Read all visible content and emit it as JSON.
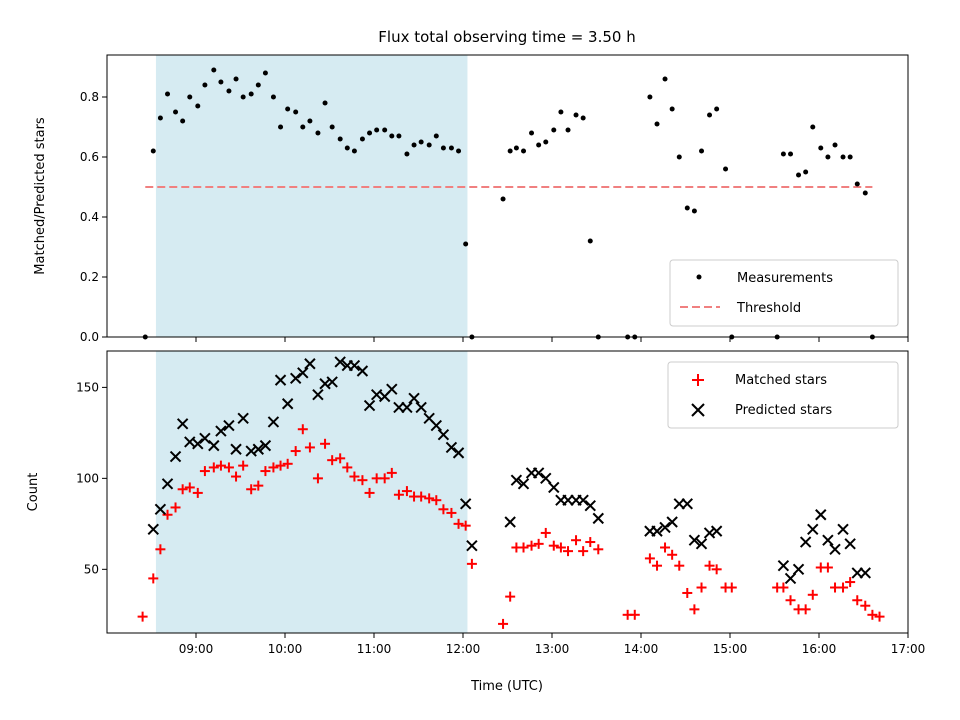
{
  "chart_data": [
    {
      "type": "scatter",
      "title": "Flux total observing time = 3.50 h",
      "ylabel": "Matched/Predicted stars",
      "xlabel": "",
      "x_unit": "hours UTC",
      "xlim": [
        8.0,
        17.0
      ],
      "ylim": [
        0.0,
        0.94
      ],
      "yticks": [
        "0.0",
        "0.2",
        "0.4",
        "0.6",
        "0.8"
      ],
      "ytick_values": [
        0.0,
        0.2,
        0.4,
        0.6,
        0.8
      ],
      "shaded_region": {
        "x0": 8.55,
        "x1": 12.05,
        "color": "#add8e6"
      },
      "legend_position": "lower-right",
      "series": [
        {
          "name": "Measurements",
          "marker": "dot",
          "color": "#000000",
          "x": [
            8.43,
            8.52,
            8.6,
            8.68,
            8.77,
            8.85,
            8.93,
            9.02,
            9.1,
            9.2,
            9.28,
            9.37,
            9.45,
            9.53,
            9.62,
            9.7,
            9.78,
            9.87,
            9.95,
            10.03,
            10.12,
            10.2,
            10.28,
            10.37,
            10.45,
            10.53,
            10.62,
            10.7,
            10.78,
            10.87,
            10.95,
            11.03,
            11.12,
            11.2,
            11.28,
            11.37,
            11.45,
            11.53,
            11.62,
            11.7,
            11.78,
            11.87,
            11.95,
            12.03,
            12.1,
            12.45,
            12.53,
            12.6,
            12.68,
            12.77,
            12.85,
            12.93,
            13.02,
            13.1,
            13.18,
            13.27,
            13.35,
            13.43,
            13.52,
            13.85,
            13.93,
            14.1,
            14.18,
            14.27,
            14.35,
            14.43,
            14.52,
            14.6,
            14.68,
            14.77,
            14.85,
            14.95,
            15.02,
            15.53,
            15.6,
            15.68,
            15.77,
            15.85,
            15.93,
            16.02,
            16.1,
            16.18,
            16.27,
            16.35,
            16.43,
            16.52,
            16.6
          ],
          "y": [
            0.0,
            0.62,
            0.73,
            0.81,
            0.75,
            0.72,
            0.8,
            0.77,
            0.84,
            0.89,
            0.85,
            0.82,
            0.86,
            0.8,
            0.81,
            0.84,
            0.88,
            0.8,
            0.7,
            0.76,
            0.75,
            0.7,
            0.72,
            0.68,
            0.78,
            0.7,
            0.66,
            0.63,
            0.62,
            0.66,
            0.68,
            0.69,
            0.69,
            0.67,
            0.67,
            0.61,
            0.64,
            0.65,
            0.64,
            0.67,
            0.63,
            0.63,
            0.62,
            0.31,
            0.0,
            0.46,
            0.62,
            0.63,
            0.62,
            0.68,
            0.64,
            0.65,
            0.69,
            0.75,
            0.69,
            0.74,
            0.73,
            0.32,
            0.0,
            0.0,
            0.0,
            0.8,
            0.71,
            0.86,
            0.76,
            0.6,
            0.43,
            0.42,
            0.62,
            0.74,
            0.76,
            0.56,
            0.0,
            0.0,
            0.61,
            0.61,
            0.54,
            0.55,
            0.7,
            0.63,
            0.6,
            0.64,
            0.6,
            0.6,
            0.51,
            0.48,
            0.0
          ]
        },
        {
          "name": "Threshold",
          "marker": "dashed-line",
          "color": "#f08080",
          "x": [
            8.43,
            16.6
          ],
          "y": [
            0.5,
            0.5
          ]
        }
      ]
    },
    {
      "type": "scatter",
      "title": "",
      "ylabel": "Count",
      "xlabel": "Time (UTC)",
      "x_unit": "hours UTC",
      "xlim": [
        8.0,
        17.0
      ],
      "ylim": [
        15,
        170
      ],
      "yticks": [
        "50",
        "100",
        "150"
      ],
      "ytick_values": [
        50,
        100,
        150
      ],
      "xticks": [
        "09:00",
        "10:00",
        "11:00",
        "12:00",
        "13:00",
        "14:00",
        "15:00",
        "16:00",
        "17:00"
      ],
      "xtick_values": [
        9,
        10,
        11,
        12,
        13,
        14,
        15,
        16,
        17
      ],
      "shaded_region": {
        "x0": 8.55,
        "x1": 12.05,
        "color": "#add8e6"
      },
      "legend_position": "top-right",
      "series": [
        {
          "name": "Matched stars",
          "marker": "plus",
          "color": "#ff0000",
          "x": [
            8.4,
            8.52,
            8.6,
            8.68,
            8.77,
            8.85,
            8.93,
            9.02,
            9.1,
            9.2,
            9.28,
            9.37,
            9.45,
            9.53,
            9.62,
            9.7,
            9.78,
            9.87,
            9.95,
            10.03,
            10.12,
            10.2,
            10.28,
            10.37,
            10.45,
            10.53,
            10.62,
            10.7,
            10.78,
            10.87,
            10.95,
            11.03,
            11.12,
            11.2,
            11.28,
            11.37,
            11.45,
            11.53,
            11.62,
            11.7,
            11.78,
            11.87,
            11.95,
            12.03,
            12.1,
            12.45,
            12.53,
            12.6,
            12.68,
            12.77,
            12.85,
            12.93,
            13.02,
            13.1,
            13.18,
            13.27,
            13.35,
            13.43,
            13.52,
            13.85,
            13.93,
            14.1,
            14.18,
            14.27,
            14.35,
            14.43,
            14.52,
            14.6,
            14.68,
            14.77,
            14.85,
            14.95,
            15.02,
            15.53,
            15.6,
            15.68,
            15.77,
            15.85,
            15.93,
            16.02,
            16.1,
            16.18,
            16.27,
            16.35,
            16.43,
            16.52,
            16.6,
            16.68
          ],
          "y": [
            24,
            45,
            61,
            80,
            84,
            94,
            95,
            92,
            104,
            106,
            107,
            106,
            101,
            107,
            94,
            96,
            104,
            106,
            107,
            108,
            115,
            127,
            117,
            100,
            119,
            110,
            111,
            106,
            101,
            99,
            92,
            100,
            100,
            103,
            91,
            93,
            90,
            90,
            89,
            88,
            83,
            81,
            75,
            74,
            53,
            20,
            35,
            62,
            62,
            63,
            64,
            70,
            63,
            62,
            60,
            66,
            60,
            65,
            61,
            25,
            25,
            56,
            52,
            62,
            58,
            52,
            37,
            28,
            40,
            52,
            50,
            40,
            40,
            40,
            40,
            33,
            28,
            28,
            36,
            51,
            51,
            40,
            40,
            43,
            33,
            30,
            25,
            24
          ]
        },
        {
          "name": "Predicted stars",
          "marker": "cross",
          "color": "#000000",
          "x": [
            8.52,
            8.6,
            8.68,
            8.77,
            8.85,
            8.93,
            9.02,
            9.1,
            9.2,
            9.28,
            9.37,
            9.45,
            9.53,
            9.62,
            9.7,
            9.78,
            9.87,
            9.95,
            10.03,
            10.12,
            10.2,
            10.28,
            10.37,
            10.45,
            10.53,
            10.62,
            10.7,
            10.78,
            10.87,
            10.95,
            11.03,
            11.12,
            11.2,
            11.28,
            11.37,
            11.45,
            11.53,
            11.62,
            11.7,
            11.78,
            11.87,
            11.95,
            12.03,
            12.1,
            12.53,
            12.6,
            12.68,
            12.77,
            12.85,
            12.93,
            13.02,
            13.1,
            13.18,
            13.27,
            13.35,
            13.43,
            13.52,
            14.1,
            14.18,
            14.27,
            14.35,
            14.43,
            14.52,
            14.6,
            14.68,
            14.77,
            14.85,
            15.6,
            15.68,
            15.77,
            15.85,
            15.93,
            16.02,
            16.1,
            16.18,
            16.27,
            16.35,
            16.43,
            16.52
          ],
          "y": [
            72,
            83,
            97,
            112,
            130,
            120,
            119,
            122,
            118,
            126,
            129,
            116,
            133,
            115,
            116,
            118,
            131,
            154,
            141,
            155,
            158,
            163,
            146,
            152,
            153,
            164,
            162,
            162,
            159,
            140,
            146,
            145,
            149,
            139,
            139,
            144,
            139,
            133,
            129,
            124,
            117,
            114,
            86,
            63,
            76,
            99,
            97,
            103,
            103,
            100,
            95,
            88,
            88,
            88,
            88,
            85,
            78,
            71,
            71,
            73,
            76,
            86,
            86,
            66,
            64,
            70,
            71,
            52,
            45,
            50,
            65,
            72,
            80,
            66,
            61,
            72,
            64,
            48,
            48
          ]
        }
      ]
    }
  ]
}
